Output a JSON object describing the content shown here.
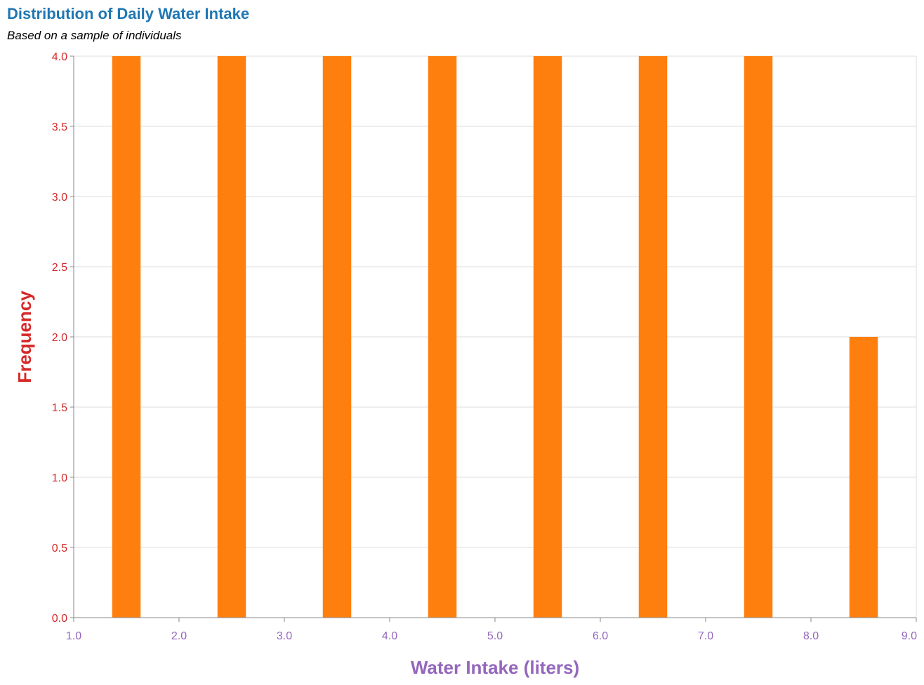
{
  "chart_data": {
    "type": "bar",
    "title": "Distribution of Daily Water Intake",
    "subtitle": "Based on a sample of individuals",
    "xlabel": "Water Intake (liters)",
    "ylabel": "Frequency",
    "bins": [
      {
        "x_center": 1.5,
        "value": 4
      },
      {
        "x_center": 2.5,
        "value": 4
      },
      {
        "x_center": 3.5,
        "value": 4
      },
      {
        "x_center": 4.5,
        "value": 4
      },
      {
        "x_center": 5.5,
        "value": 4
      },
      {
        "x_center": 6.5,
        "value": 4
      },
      {
        "x_center": 7.5,
        "value": 4
      },
      {
        "x_center": 8.5,
        "value": 2
      }
    ],
    "xlim": [
      1.0,
      9.0
    ],
    "ylim": [
      0,
      4
    ],
    "x_ticks": [
      "1.0",
      "2.0",
      "3.0",
      "4.0",
      "5.0",
      "6.0",
      "7.0",
      "8.0",
      "9.0"
    ],
    "y_ticks": [
      "0.0",
      "0.5",
      "1.0",
      "1.5",
      "2.0",
      "2.5",
      "3.0",
      "3.5",
      "4.0"
    ],
    "bar_width_units": 0.27,
    "grid": true,
    "colors": {
      "bar": "#ff7f0e",
      "title": "#1f77b4",
      "x_axis": "#9467bd",
      "y_axis": "#d62728",
      "grid": "#dddddd",
      "axis_line": "#888888"
    }
  }
}
